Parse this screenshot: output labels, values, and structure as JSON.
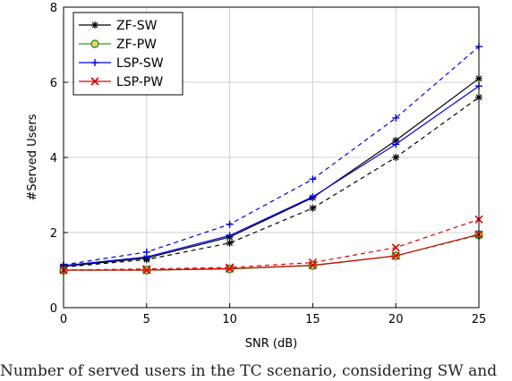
{
  "chart_data": {
    "type": "line",
    "title": "",
    "xlabel": "SNR (dB)",
    "ylabel": "#Served Users",
    "xlim": [
      0,
      25
    ],
    "ylim": [
      0,
      8
    ],
    "x": [
      0,
      5,
      10,
      15,
      20,
      25
    ],
    "xticks": [
      "0",
      "5",
      "10",
      "15",
      "20",
      "25"
    ],
    "yticks": [
      "0",
      "2",
      "4",
      "6",
      "8"
    ],
    "legend_position": "top-left",
    "grid": true,
    "series": [
      {
        "name": "ZF-SW",
        "color": "#000000",
        "marker": "star",
        "style": "solid",
        "values": [
          1.1,
          1.32,
          1.88,
          2.93,
          4.45,
          6.1
        ]
      },
      {
        "name": "ZF-PW",
        "color": "#2a9a2a",
        "marker": "circle",
        "style": "solid",
        "values": [
          1.0,
          1.0,
          1.03,
          1.12,
          1.38,
          1.95
        ]
      },
      {
        "name": "LSP-SW",
        "color": "#0000ee",
        "marker": "plus",
        "style": "solid",
        "values": [
          1.12,
          1.35,
          1.92,
          2.95,
          4.35,
          5.9
        ]
      },
      {
        "name": "LSP-PW",
        "color": "#dd0000",
        "marker": "x",
        "style": "solid",
        "values": [
          1.0,
          1.0,
          1.04,
          1.13,
          1.38,
          1.95
        ]
      },
      {
        "name": "",
        "color": "#000000",
        "marker": "star",
        "style": "dashed",
        "values": [
          1.08,
          1.28,
          1.72,
          2.65,
          4.0,
          5.6
        ]
      },
      {
        "name": "",
        "color": "#2a9a2a",
        "marker": "circle",
        "style": "dashed",
        "values": [
          1.0,
          1.0,
          1.03,
          1.12,
          1.38,
          1.93
        ]
      },
      {
        "name": "",
        "color": "#0000ee",
        "marker": "plus",
        "style": "dashed",
        "values": [
          1.14,
          1.48,
          2.22,
          3.42,
          5.05,
          6.95
        ]
      },
      {
        "name": "",
        "color": "#dd0000",
        "marker": "x",
        "style": "dashed",
        "values": [
          1.0,
          1.03,
          1.07,
          1.2,
          1.6,
          2.35
        ]
      }
    ]
  },
  "caption": "Number of served users in the TC scenario, considering SW and"
}
